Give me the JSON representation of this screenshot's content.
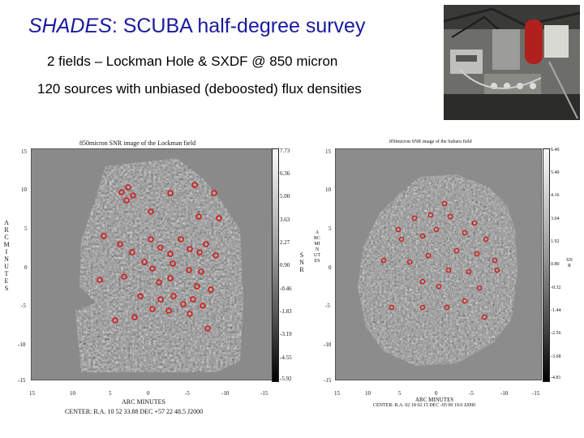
{
  "slide": {
    "title_italic": "SHADES",
    "title_rest": ": SCUBA half-degree survey",
    "subtitle1": "2 fields – Lockman Hole & SXDF @ 850 micron",
    "subtitle2": "120 sources with unbiased (deboosted) flux densities"
  },
  "left_map": {
    "title": "850micron SNR image of the Lockman field",
    "y_ticks": [
      "15",
      "10",
      "5",
      "0",
      "-5",
      "-10",
      "-15"
    ],
    "x_ticks": [
      "15",
      "10",
      "5",
      "0",
      "-5",
      "-10",
      "-15"
    ],
    "colorbar_ticks": [
      "7.73",
      "6.36",
      "5.00",
      "3.63",
      "2.27",
      "0.90",
      "-0.46",
      "-1.83",
      "-3.19",
      "-4.55",
      "-5.92"
    ],
    "x_axis_label": "ARC MINUTES",
    "y_axis_label": "ARC MINUTES",
    "center_label": "CENTER: R.A. 10 52 33.88  DEC +57 22 48.5  J2000",
    "colorbar_label": "SNR"
  },
  "right_map": {
    "title": "850micron SNR image of the Subaru field",
    "y_ticks": [
      "15",
      "10",
      "5",
      "0",
      "-5",
      "-10",
      "-15"
    ],
    "x_ticks": [
      "15",
      "10",
      "5",
      "0",
      "-5",
      "-10",
      "-15"
    ],
    "colorbar_ticks": [
      "6.40",
      "5.40",
      "4.16",
      "3.04",
      "1.92",
      "0.80",
      "-0.32",
      "-1.44",
      "-2.56",
      "-3.68",
      "-4.81"
    ],
    "x_axis_label": "ARC MINUTES",
    "y_axis_label": "ARC MINUTES",
    "center_label": "CENTER: R.A. 02 18 02.15  DEC -05 00 19.0  J2000",
    "colorbar_label": "SNR"
  }
}
